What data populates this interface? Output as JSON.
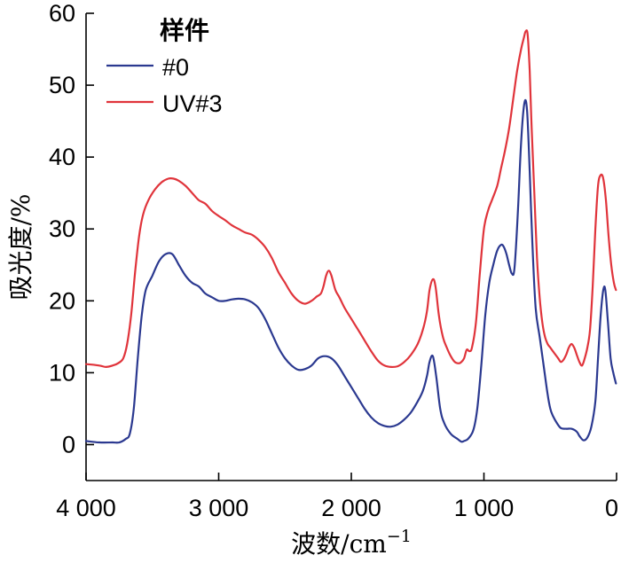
{
  "chart_data": {
    "type": "line",
    "xlabel_main": "波数/cm",
    "xlabel_sup": "−1",
    "ylabel": "吸光度/%",
    "xlim": [
      4000,
      0
    ],
    "ylim": [
      -5,
      60
    ],
    "x_ticks": [
      4000,
      3000,
      2000,
      1000,
      0
    ],
    "x_tick_labels": [
      "4 000",
      "3 000",
      "2 000",
      "1 000",
      "0"
    ],
    "y_ticks": [
      0,
      10,
      20,
      30,
      40,
      50,
      60
    ],
    "y_tick_labels": [
      "0",
      "10",
      "20",
      "30",
      "40",
      "50",
      "60"
    ],
    "legend": {
      "title": "样件",
      "position": "top-left"
    },
    "series": [
      {
        "name": "#0",
        "color": "#2b3990",
        "points": [
          [
            4000,
            0.5
          ],
          [
            3900,
            0.3
          ],
          [
            3800,
            0.3
          ],
          [
            3750,
            0.3
          ],
          [
            3700,
            0.8
          ],
          [
            3670,
            1.5
          ],
          [
            3640,
            5
          ],
          [
            3610,
            12
          ],
          [
            3580,
            18
          ],
          [
            3550,
            21.5
          ],
          [
            3500,
            23.5
          ],
          [
            3450,
            25.5
          ],
          [
            3400,
            26.5
          ],
          [
            3350,
            26.5
          ],
          [
            3300,
            25
          ],
          [
            3250,
            23.5
          ],
          [
            3200,
            22.5
          ],
          [
            3150,
            22
          ],
          [
            3100,
            21
          ],
          [
            3050,
            20.5
          ],
          [
            3000,
            20
          ],
          [
            2950,
            20
          ],
          [
            2900,
            20.2
          ],
          [
            2850,
            20.3
          ],
          [
            2800,
            20.2
          ],
          [
            2750,
            19.8
          ],
          [
            2700,
            19
          ],
          [
            2650,
            17.5
          ],
          [
            2600,
            15.5
          ],
          [
            2550,
            13.5
          ],
          [
            2500,
            12
          ],
          [
            2450,
            11
          ],
          [
            2400,
            10.4
          ],
          [
            2350,
            10.5
          ],
          [
            2300,
            11
          ],
          [
            2250,
            12
          ],
          [
            2200,
            12.3
          ],
          [
            2150,
            12
          ],
          [
            2100,
            11
          ],
          [
            2050,
            9.5
          ],
          [
            2000,
            8
          ],
          [
            1950,
            6.5
          ],
          [
            1900,
            5
          ],
          [
            1850,
            3.8
          ],
          [
            1800,
            3
          ],
          [
            1750,
            2.6
          ],
          [
            1700,
            2.5
          ],
          [
            1650,
            2.8
          ],
          [
            1600,
            3.5
          ],
          [
            1550,
            4.5
          ],
          [
            1500,
            6
          ],
          [
            1460,
            7.5
          ],
          [
            1430,
            9.5
          ],
          [
            1410,
            11.5
          ],
          [
            1385,
            12.3
          ],
          [
            1360,
            9.5
          ],
          [
            1330,
            5
          ],
          [
            1300,
            3
          ],
          [
            1250,
            1.5
          ],
          [
            1200,
            0.8
          ],
          [
            1170,
            0.4
          ],
          [
            1150,
            0.5
          ],
          [
            1120,
            0.8
          ],
          [
            1080,
            2
          ],
          [
            1050,
            5
          ],
          [
            1020,
            11
          ],
          [
            990,
            18
          ],
          [
            960,
            22.5
          ],
          [
            930,
            25
          ],
          [
            900,
            27
          ],
          [
            870,
            27.8
          ],
          [
            850,
            27.5
          ],
          [
            830,
            26.5
          ],
          [
            810,
            25
          ],
          [
            790,
            23.8
          ],
          [
            770,
            24.5
          ],
          [
            745,
            32
          ],
          [
            720,
            42
          ],
          [
            695,
            47.5
          ],
          [
            675,
            46.5
          ],
          [
            655,
            38
          ],
          [
            635,
            28
          ],
          [
            610,
            19
          ],
          [
            580,
            15
          ],
          [
            550,
            11
          ],
          [
            520,
            7
          ],
          [
            500,
            5
          ],
          [
            480,
            4
          ],
          [
            450,
            3
          ],
          [
            420,
            2.3
          ],
          [
            380,
            2.2
          ],
          [
            340,
            2.2
          ],
          [
            300,
            1.8
          ],
          [
            280,
            1.2
          ],
          [
            250,
            0.6
          ],
          [
            220,
            1
          ],
          [
            190,
            2.5
          ],
          [
            160,
            6
          ],
          [
            140,
            12
          ],
          [
            120,
            18
          ],
          [
            100,
            21.5
          ],
          [
            85,
            21.5
          ],
          [
            65,
            17
          ],
          [
            45,
            12
          ],
          [
            25,
            10
          ],
          [
            5,
            8.5
          ]
        ]
      },
      {
        "name": "UV#3",
        "color": "#e0343b",
        "points": [
          [
            4000,
            11.2
          ],
          [
            3900,
            11.0
          ],
          [
            3850,
            10.8
          ],
          [
            3800,
            11.0
          ],
          [
            3760,
            11.3
          ],
          [
            3720,
            12
          ],
          [
            3690,
            14
          ],
          [
            3660,
            18
          ],
          [
            3630,
            24
          ],
          [
            3600,
            29
          ],
          [
            3570,
            32
          ],
          [
            3530,
            34
          ],
          [
            3480,
            35.5
          ],
          [
            3430,
            36.5
          ],
          [
            3380,
            37
          ],
          [
            3340,
            37
          ],
          [
            3300,
            36.7
          ],
          [
            3250,
            36
          ],
          [
            3200,
            35
          ],
          [
            3150,
            34
          ],
          [
            3100,
            33.5
          ],
          [
            3050,
            32.5
          ],
          [
            3000,
            31.8
          ],
          [
            2950,
            31.2
          ],
          [
            2900,
            30.5
          ],
          [
            2850,
            30
          ],
          [
            2800,
            29.5
          ],
          [
            2750,
            29.2
          ],
          [
            2700,
            28.5
          ],
          [
            2650,
            27.5
          ],
          [
            2600,
            26
          ],
          [
            2550,
            24
          ],
          [
            2500,
            22.5
          ],
          [
            2450,
            21
          ],
          [
            2400,
            20
          ],
          [
            2350,
            19.6
          ],
          [
            2300,
            20
          ],
          [
            2260,
            20.6
          ],
          [
            2230,
            21
          ],
          [
            2210,
            22
          ],
          [
            2190,
            23.5
          ],
          [
            2170,
            24.2
          ],
          [
            2150,
            23.5
          ],
          [
            2120,
            21.5
          ],
          [
            2090,
            20.5
          ],
          [
            2050,
            19
          ],
          [
            2000,
            17.5
          ],
          [
            1950,
            16
          ],
          [
            1900,
            14.5
          ],
          [
            1850,
            13
          ],
          [
            1800,
            11.7
          ],
          [
            1750,
            11
          ],
          [
            1700,
            10.8
          ],
          [
            1650,
            10.9
          ],
          [
            1600,
            11.5
          ],
          [
            1550,
            12.5
          ],
          [
            1500,
            14
          ],
          [
            1460,
            16
          ],
          [
            1430,
            18.5
          ],
          [
            1410,
            21.5
          ],
          [
            1385,
            23
          ],
          [
            1365,
            22
          ],
          [
            1340,
            18
          ],
          [
            1310,
            15
          ],
          [
            1280,
            13.5
          ],
          [
            1250,
            12.3
          ],
          [
            1220,
            11.5
          ],
          [
            1190,
            11.3
          ],
          [
            1170,
            11.5
          ],
          [
            1150,
            12
          ],
          [
            1130,
            13.2
          ],
          [
            1110,
            13
          ],
          [
            1090,
            13.5
          ],
          [
            1060,
            17
          ],
          [
            1030,
            24
          ],
          [
            1000,
            30
          ],
          [
            970,
            32.5
          ],
          [
            940,
            34
          ],
          [
            900,
            36
          ],
          [
            870,
            38.5
          ],
          [
            840,
            41
          ],
          [
            810,
            44
          ],
          [
            780,
            48
          ],
          [
            750,
            52
          ],
          [
            720,
            55
          ],
          [
            700,
            56.5
          ],
          [
            685,
            57.5
          ],
          [
            670,
            57
          ],
          [
            655,
            52
          ],
          [
            640,
            44
          ],
          [
            620,
            35
          ],
          [
            600,
            26
          ],
          [
            580,
            20.5
          ],
          [
            560,
            17
          ],
          [
            540,
            15
          ],
          [
            520,
            14
          ],
          [
            500,
            13.5
          ],
          [
            480,
            13
          ],
          [
            460,
            12.5
          ],
          [
            440,
            12
          ],
          [
            420,
            11.5
          ],
          [
            400,
            11.8
          ],
          [
            380,
            12.5
          ],
          [
            360,
            13.5
          ],
          [
            340,
            14
          ],
          [
            320,
            13.5
          ],
          [
            300,
            12.5
          ],
          [
            280,
            11.5
          ],
          [
            260,
            11
          ],
          [
            240,
            12
          ],
          [
            220,
            13.5
          ],
          [
            200,
            16
          ],
          [
            180,
            22
          ],
          [
            160,
            30
          ],
          [
            140,
            36
          ],
          [
            120,
            37.5
          ],
          [
            100,
            37
          ],
          [
            80,
            34
          ],
          [
            60,
            29
          ],
          [
            40,
            25
          ],
          [
            20,
            22.5
          ],
          [
            5,
            21.5
          ]
        ]
      }
    ]
  }
}
